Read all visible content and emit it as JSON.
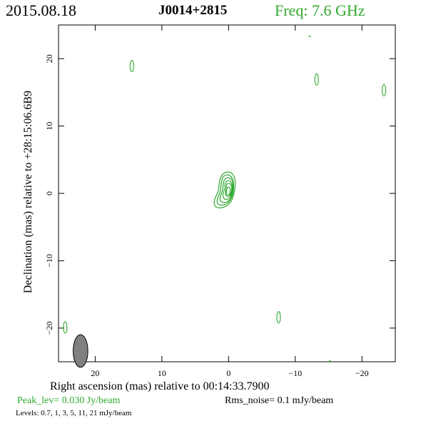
{
  "header": {
    "date": "2015.08.18",
    "source": "J0014+2815",
    "freq": "Freq:  7.6  GHz"
  },
  "footer": {
    "xlabel": "Right ascension (mas) relative to 00:14:33.7900",
    "peak": "Peak_lev=  0.030 Jy/beam",
    "rms": "Rms_noise=   0.1 mJy/beam",
    "levels": "Levels: 0.7,    1,    3,    5,   11,   21 mJy/beam"
  },
  "ylabel": "Declination (mas) relative to +28:15:06.6B9",
  "colors": {
    "contour": "#2fa82f",
    "beam": "#808080",
    "axis": "#000000"
  },
  "chart_data": {
    "type": "contour",
    "xlim": [
      25.5,
      -25
    ],
    "ylim": [
      -25,
      25
    ],
    "x_ticks": [
      20,
      10,
      0,
      -10,
      -20
    ],
    "y_ticks": [
      20,
      10,
      0,
      -10,
      -20
    ],
    "levels_mJy": [
      0.7,
      1,
      3,
      5,
      11,
      21
    ],
    "peak_Jy_per_beam": 0.03,
    "rms_mJy_per_beam": 0.1,
    "core": {
      "x": 0.0,
      "y": 0.3,
      "n_contours": 6
    },
    "noise_islands": [
      {
        "x": 14.5,
        "y": 18.9
      },
      {
        "x": -13.2,
        "y": 16.9
      },
      {
        "x": -23.3,
        "y": 15.3
      },
      {
        "x": -12.2,
        "y": 23.3
      },
      {
        "x": -7.5,
        "y": -18.4
      },
      {
        "x": 24.5,
        "y": -19.9
      },
      {
        "x": -15.3,
        "y": -24.9
      }
    ],
    "beam": {
      "x": 22.2,
      "y": -23.4,
      "major_mas": 2.2,
      "minor_mas": 1.0,
      "pa_deg": 0
    }
  }
}
